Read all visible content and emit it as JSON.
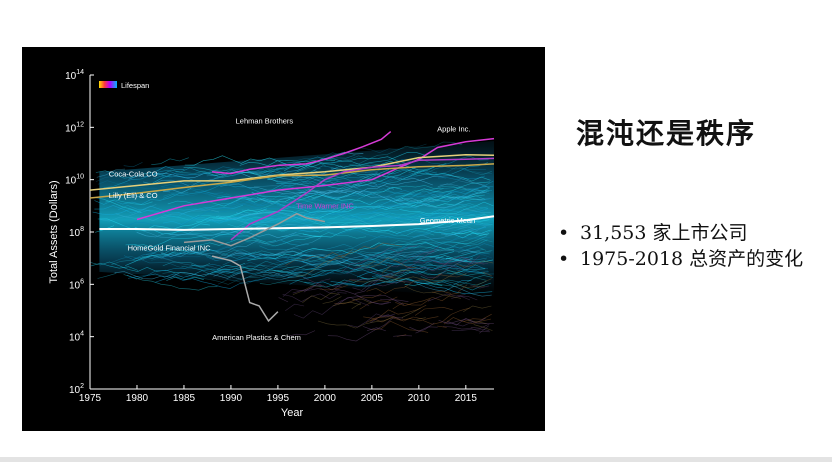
{
  "slide": {
    "title": "混沌还是秩序",
    "bullets": [
      "31,553 家上市公司",
      "1975-2018 总资产的变化"
    ],
    "bullet_symbol": "•"
  },
  "chart_data": {
    "type": "line",
    "title": "",
    "xlabel": "Year",
    "ylabel": "Total Assets (Dollars)",
    "xlim": [
      1975,
      2018
    ],
    "ylim": [
      100,
      100000000000000
    ],
    "y_scale": "log",
    "x_ticks": [
      1975,
      1980,
      1985,
      1990,
      1995,
      2000,
      2005,
      2010,
      2015
    ],
    "y_ticks": [
      {
        "value": 100,
        "base": "10",
        "exp": "2"
      },
      {
        "value": 10000,
        "base": "10",
        "exp": "4"
      },
      {
        "value": 1000000,
        "base": "10",
        "exp": "6"
      },
      {
        "value": 100000000,
        "base": "10",
        "exp": "8"
      },
      {
        "value": 10000000000,
        "base": "10",
        "exp": "10"
      },
      {
        "value": 1000000000000,
        "base": "10",
        "exp": "12"
      },
      {
        "value": 100000000000000,
        "base": "10",
        "exp": "14"
      }
    ],
    "legend": {
      "label": "Lifespan",
      "position": "top-left"
    },
    "grid": false,
    "background": "#000000",
    "series": [
      {
        "name": "Lehman Brothers",
        "color": "#d63ad6",
        "x": [
          1988,
          1990,
          1992,
          1995,
          1998,
          2000,
          2002,
          2004,
          2006,
          2007
        ],
        "y": [
          20000000000,
          17000000000,
          25000000000,
          35000000000,
          40000000000,
          60000000000,
          100000000000,
          180000000000,
          350000000000,
          690000000000
        ]
      },
      {
        "name": "Apple Inc.",
        "color": "#d63ad6",
        "x": [
          1980,
          1985,
          1990,
          1995,
          2000,
          2005,
          2008,
          2010,
          2012,
          2015,
          2018
        ],
        "y": [
          300000000,
          1000000000,
          2000000000,
          4000000000,
          6000000000,
          10000000000,
          30000000000,
          60000000000,
          170000000000,
          280000000000,
          370000000000
        ]
      },
      {
        "name": "Coca-Cola CO",
        "color": "#e6d07a",
        "x": [
          1975,
          1980,
          1985,
          1990,
          1995,
          2000,
          2005,
          2010,
          2015,
          2018
        ],
        "y": [
          4000000000,
          6000000000,
          9000000000,
          9000000000,
          15000000000,
          20000000000,
          30000000000,
          70000000000,
          90000000000,
          85000000000
        ]
      },
      {
        "name": "Lilly (Eli) & CO",
        "color": "#c9a84a",
        "x": [
          1975,
          1980,
          1985,
          1990,
          1995,
          2000,
          2005,
          2010,
          2015,
          2018
        ],
        "y": [
          2000000000,
          3000000000,
          5000000000,
          8000000000,
          14000000000,
          15000000000,
          24000000000,
          31000000000,
          35000000000,
          40000000000
        ]
      },
      {
        "name": "Time Warner INC",
        "color": "#b23cc8",
        "x": [
          1990,
          1992,
          1995,
          1998,
          2000,
          2002,
          2005,
          2008,
          2010,
          2015,
          2018
        ],
        "y": [
          50000000,
          200000000,
          600000000,
          3000000000,
          10000000000,
          20000000000,
          30000000000,
          35000000000,
          55000000000,
          60000000000,
          65000000000
        ]
      },
      {
        "name": "Geometric Mean",
        "color": "#ffffff",
        "x": [
          1976,
          1980,
          1985,
          1990,
          1995,
          2000,
          2005,
          2010,
          2015,
          2018
        ],
        "y": [
          130000000,
          130000000,
          120000000,
          130000000,
          140000000,
          150000000,
          170000000,
          200000000,
          280000000,
          400000000
        ]
      },
      {
        "name": "HomeGold Financial INC",
        "color": "#9a9a9a",
        "x": [
          1985,
          1988,
          1990,
          1992,
          1995,
          1997,
          1998,
          2000
        ],
        "y": [
          40000000,
          50000000,
          30000000,
          60000000,
          200000000,
          500000000,
          350000000,
          250000000
        ]
      },
      {
        "name": "American Plastics & Chem",
        "color": "#aaaaaa",
        "x": [
          1988,
          1990,
          1991,
          1992,
          1993,
          1994,
          1995
        ],
        "y": [
          12000000,
          8000000,
          5000000,
          200000,
          150000,
          40000,
          90000
        ]
      }
    ]
  }
}
